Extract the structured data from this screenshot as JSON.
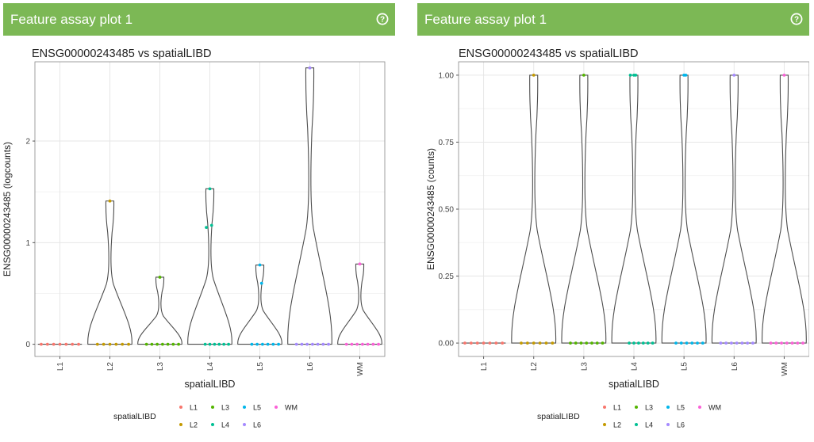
{
  "panels": [
    {
      "header_title": "Feature assay plot 1",
      "help_icon": "help-circle-icon",
      "chart_data": {
        "type": "violin",
        "title": "ENSG00000243485 vs spatialLIBD",
        "xlabel": "spatialLIBD",
        "ylabel": "ENSG00000243485 (logcounts)",
        "categories": [
          "L1",
          "L2",
          "L3",
          "L4",
          "L5",
          "L6",
          "WM"
        ],
        "ylim": [
          -0.12,
          2.78
        ],
        "yticks": [
          0,
          1,
          2
        ],
        "ytick_labels": [
          "0",
          "1",
          "2"
        ],
        "grid": true,
        "legend_title": "spatialLIBD",
        "legend_placement": "bottom",
        "series": [
          {
            "name": "L1",
            "color": "#F8766D",
            "max": 0.0,
            "points": [
              0,
              0,
              0,
              0,
              0,
              0,
              0
            ]
          },
          {
            "name": "L2",
            "color": "#C49A00",
            "max": 1.41,
            "points": [
              1.41,
              0,
              0,
              0,
              0,
              0,
              0
            ]
          },
          {
            "name": "L3",
            "color": "#53B400",
            "max": 0.66,
            "points": [
              0.66,
              0,
              0,
              0,
              0,
              0,
              0,
              0
            ]
          },
          {
            "name": "L4",
            "color": "#00C094",
            "max": 1.53,
            "points": [
              1.53,
              1.17,
              1.15,
              0,
              0,
              0,
              0,
              0,
              0
            ]
          },
          {
            "name": "L5",
            "color": "#00B6EB",
            "max": 0.78,
            "points": [
              0.78,
              0.6,
              0,
              0,
              0,
              0,
              0,
              0
            ]
          },
          {
            "name": "L6",
            "color": "#A58AFF",
            "max": 2.72,
            "points": [
              2.72,
              0,
              0,
              0,
              0,
              0,
              0,
              0
            ]
          },
          {
            "name": "WM",
            "color": "#FB61D7",
            "max": 0.79,
            "points": [
              0.79,
              0,
              0,
              0,
              0,
              0,
              0,
              0
            ]
          }
        ]
      }
    },
    {
      "header_title": "Feature assay plot 1",
      "help_icon": "help-circle-icon",
      "chart_data": {
        "type": "violin",
        "title": "ENSG00000243485 vs spatialLIBD",
        "xlabel": "spatialLIBD",
        "ylabel": "ENSG00000243485 (counts)",
        "categories": [
          "L1",
          "L2",
          "L3",
          "L4",
          "L5",
          "L6",
          "WM"
        ],
        "ylim": [
          -0.05,
          1.05
        ],
        "yticks": [
          0,
          0.25,
          0.5,
          0.75,
          1
        ],
        "ytick_labels": [
          "0.00",
          "0.25",
          "0.50",
          "0.75",
          "1.00"
        ],
        "grid": true,
        "legend_title": "spatialLIBD",
        "legend_placement": "bottom",
        "series": [
          {
            "name": "L1",
            "color": "#F8766D",
            "max": 0,
            "points": [
              0,
              0,
              0,
              0,
              0,
              0,
              0
            ]
          },
          {
            "name": "L2",
            "color": "#C49A00",
            "max": 1,
            "points": [
              1,
              0,
              0,
              0,
              0,
              0,
              0
            ]
          },
          {
            "name": "L3",
            "color": "#53B400",
            "max": 1,
            "points": [
              1,
              0,
              0,
              0,
              0,
              0,
              0,
              0
            ]
          },
          {
            "name": "L4",
            "color": "#00C094",
            "max": 1,
            "points": [
              1,
              1,
              1,
              0,
              0,
              0,
              0,
              0,
              0
            ]
          },
          {
            "name": "L5",
            "color": "#00B6EB",
            "max": 1,
            "points": [
              1,
              1,
              0,
              0,
              0,
              0,
              0,
              0
            ]
          },
          {
            "name": "L6",
            "color": "#A58AFF",
            "max": 1,
            "points": [
              1,
              0,
              0,
              0,
              0,
              0,
              0,
              0
            ]
          },
          {
            "name": "WM",
            "color": "#FB61D7",
            "max": 1,
            "points": [
              1,
              0,
              0,
              0,
              0,
              0,
              0,
              0
            ]
          }
        ]
      }
    }
  ]
}
